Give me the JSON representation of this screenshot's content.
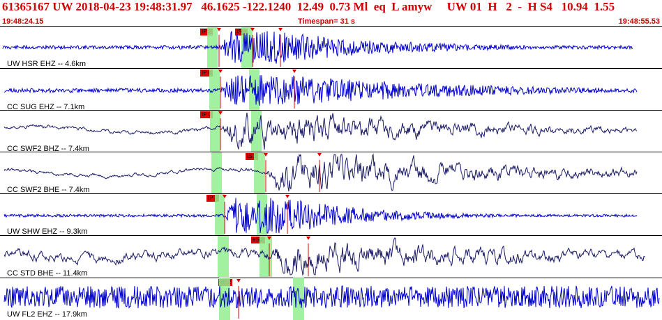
{
  "header": {
    "title": "61365167 UW 2018-04-23 19:48:31.97   46.1625 -122.1240  12.49  0.73 Ml  eq  L amyw     UW 01  H   2  -  H S4   10.94  1.55",
    "start_time": "19:48:24.15",
    "timespan": "Timespan=  31 s",
    "end_time": "19:48:55.53"
  },
  "colors": {
    "header_text": "#d00000",
    "trace_blue": "#0000cc",
    "trace_dark": "#1a1a66",
    "pick_box": "#e00000",
    "window": "#90ee90"
  },
  "traces": [
    {
      "label": "UW HSR EHZ -- 4.6km",
      "color_key": "trace_blue",
      "picks": [
        {
          "text": "IP 0"
        },
        {
          "text": "IS 1"
        }
      ]
    },
    {
      "label": "CC SUG EHZ -- 7.1km",
      "color_key": "trace_blue",
      "picks": [
        {
          "text": "IP 0"
        }
      ]
    },
    {
      "label": "CC SWF2 BHZ -- 7.4km",
      "color_key": "trace_dark",
      "picks": [
        {
          "text": "IP 0"
        }
      ]
    },
    {
      "label": "CC SWF2 BHE -- 7.4km",
      "color_key": "trace_dark",
      "picks": [
        {
          "text": "IS 1"
        }
      ]
    },
    {
      "label": "UW SHW EHZ -- 9.3km",
      "color_key": "trace_blue",
      "picks": [
        {
          "text": "IP 1"
        }
      ]
    },
    {
      "label": "CC STD BHE -- 11.4km",
      "color_key": "trace_dark",
      "picks": [
        {
          "text": "eS 3"
        }
      ]
    },
    {
      "label": "UW FL2 EHZ -- 17.9km",
      "color_key": "trace_blue",
      "picks": [
        {
          "text": "eP 2"
        }
      ]
    }
  ]
}
